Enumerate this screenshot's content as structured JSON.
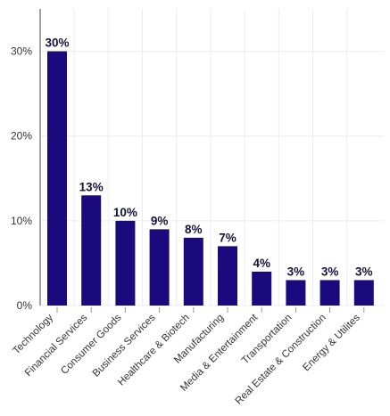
{
  "chart_data": {
    "type": "bar",
    "title": "",
    "xlabel": "",
    "ylabel": "",
    "categories": [
      "Technology",
      "Financial Services",
      "Consumer Goods",
      "Business Services",
      "Healthcare & Biotech",
      "Manufacturing",
      "Media & Entertainment",
      "Transportation",
      "Real Estate & Construction",
      "Energy & Utilites"
    ],
    "values": [
      30,
      13,
      10,
      9,
      8,
      7,
      4,
      3,
      3,
      3
    ],
    "value_labels": [
      "30%",
      "13%",
      "10%",
      "9%",
      "8%",
      "7%",
      "4%",
      "3%",
      "3%",
      "3%"
    ],
    "ylim": [
      0,
      35
    ],
    "yticks": [
      0,
      10,
      20,
      30
    ],
    "ytick_labels": [
      "0%",
      "10%",
      "20%",
      "30%"
    ],
    "bar_color": "#1b0a7d",
    "grid": true,
    "legend": "none"
  }
}
